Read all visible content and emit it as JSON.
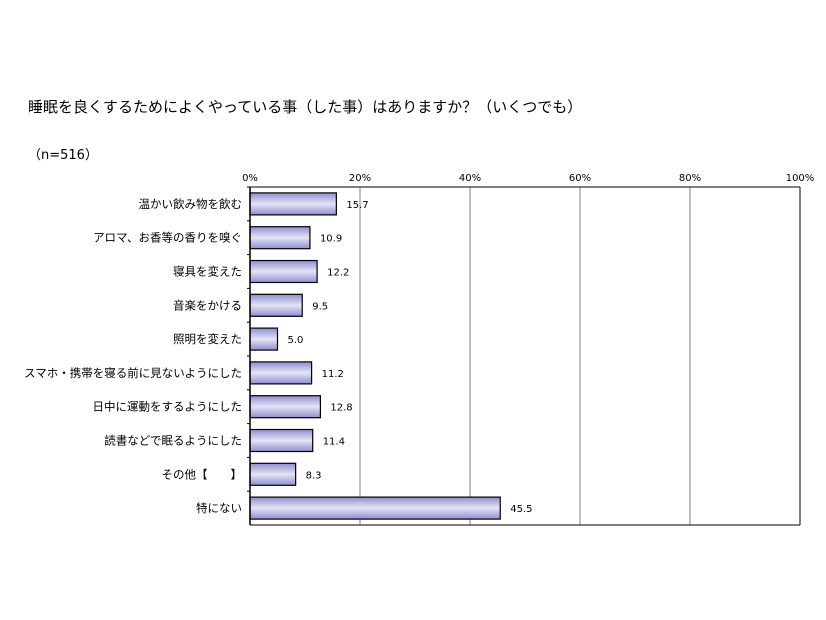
{
  "chart_data": {
    "type": "bar",
    "orientation": "horizontal",
    "title": "睡眠を良くするためによくやっている事（した事）はありますか？（いくつでも）",
    "subtitle": "（n=516）",
    "categories": [
      "温かい飲み物を飲む",
      "アロマ、お香等の香りを嗅ぐ",
      "寝具を変えた",
      "音楽をかける",
      "照明を変えた",
      "スマホ・携帯を寝る前に見ないようにした",
      "日中に運動をするようにした",
      "読書などで眠るようにした",
      "その他【　　】",
      "特にない"
    ],
    "values": [
      15.7,
      10.9,
      12.2,
      9.5,
      5.0,
      11.2,
      12.8,
      11.4,
      8.3,
      45.5
    ],
    "value_labels": [
      "15.7",
      "10.9",
      "12.2",
      "9.5",
      "5.0",
      "11.2",
      "12.8",
      "11.4",
      "8.3",
      "45.5"
    ],
    "xlim": [
      0,
      100
    ],
    "x_ticks": [
      "0%",
      "20%",
      "40%",
      "60%",
      "80%",
      "100%"
    ],
    "x_tick_values": [
      0,
      20,
      40,
      60,
      80,
      100
    ],
    "grid": true,
    "legend": "none",
    "bar_color": "#e4e4f6",
    "bar_gradient_edge": "#8e8ed0",
    "bar_border": "#000000",
    "grid_color": "#808080"
  }
}
